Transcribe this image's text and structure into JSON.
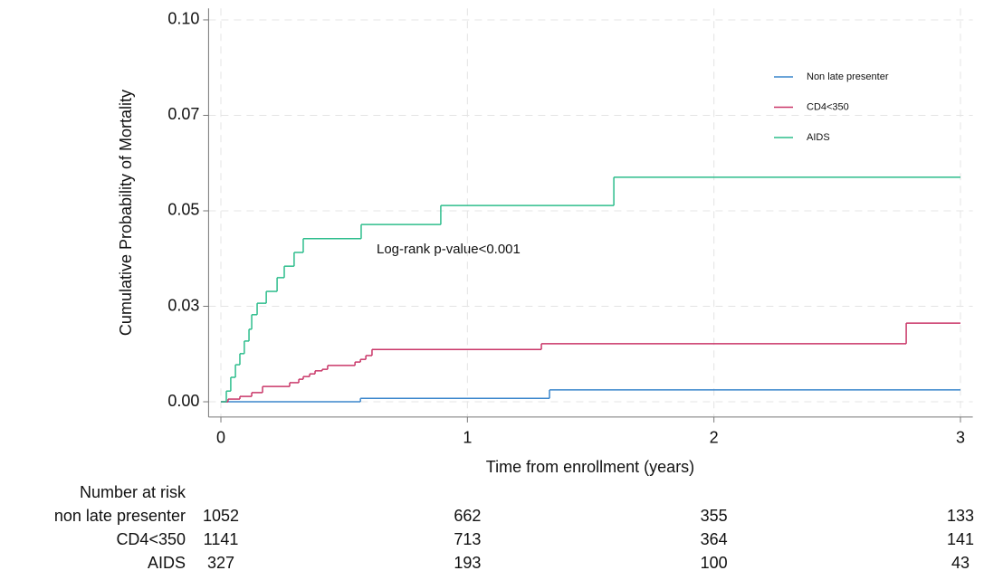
{
  "chart_data": {
    "type": "step",
    "y_label": "Cumulative Probability of Mortality",
    "x_label": "Time from enrollment (years)",
    "annotation": "Log-rank p-value<0.001",
    "xlim": [
      -0.05,
      3.05
    ],
    "ylim": [
      -0.004,
      0.103
    ],
    "xticks": [
      0,
      1,
      2,
      3
    ],
    "yticks": [
      {
        "value": 0,
        "label": "0.00"
      },
      {
        "value": 0.025,
        "label": "0.03"
      },
      {
        "value": 0.05,
        "label": "0.05"
      },
      {
        "value": 0.075,
        "label": "0.07"
      },
      {
        "value": 0.1,
        "label": "0.10"
      }
    ],
    "grid": true,
    "legend": "upper right",
    "series": [
      {
        "name": "Non late presenter",
        "color": "#3a86cc",
        "x": [
          0,
          0.566,
          1.333,
          3
        ],
        "values": [
          0,
          0.0009,
          0.0031,
          0.0031
        ]
      },
      {
        "name": "CD4<350",
        "color": "#c93668",
        "x": [
          0,
          0.029,
          0.077,
          0.125,
          0.169,
          0.279,
          0.316,
          0.334,
          0.36,
          0.382,
          0.411,
          0.433,
          0.544,
          0.566,
          0.588,
          0.613,
          1.3,
          2.78,
          3
        ],
        "values": [
          0,
          0.0007,
          0.0014,
          0.0024,
          0.004,
          0.005,
          0.0059,
          0.0066,
          0.0073,
          0.0081,
          0.0085,
          0.0095,
          0.0104,
          0.0111,
          0.0121,
          0.0137,
          0.0152,
          0.0206,
          0.0206
        ]
      },
      {
        "name": "AIDS",
        "color": "#2dbd8c",
        "x": [
          0,
          0.022,
          0.04,
          0.059,
          0.077,
          0.095,
          0.114,
          0.125,
          0.147,
          0.184,
          0.228,
          0.257,
          0.297,
          0.334,
          0.569,
          0.892,
          1.594,
          3
        ],
        "values": [
          0,
          0.0028,
          0.0064,
          0.0097,
          0.0126,
          0.0159,
          0.019,
          0.0228,
          0.0258,
          0.0289,
          0.0325,
          0.0355,
          0.0391,
          0.0427,
          0.0464,
          0.0514,
          0.0588,
          0.0588
        ]
      }
    ],
    "risk_table": {
      "title": "Number at risk",
      "rows": [
        {
          "label": "non late presenter",
          "counts": [
            1052,
            662,
            355,
            133
          ]
        },
        {
          "label": "CD4<350",
          "counts": [
            1141,
            713,
            364,
            141
          ]
        },
        {
          "label": "AIDS",
          "counts": [
            327,
            193,
            100,
            43
          ]
        }
      ]
    }
  }
}
